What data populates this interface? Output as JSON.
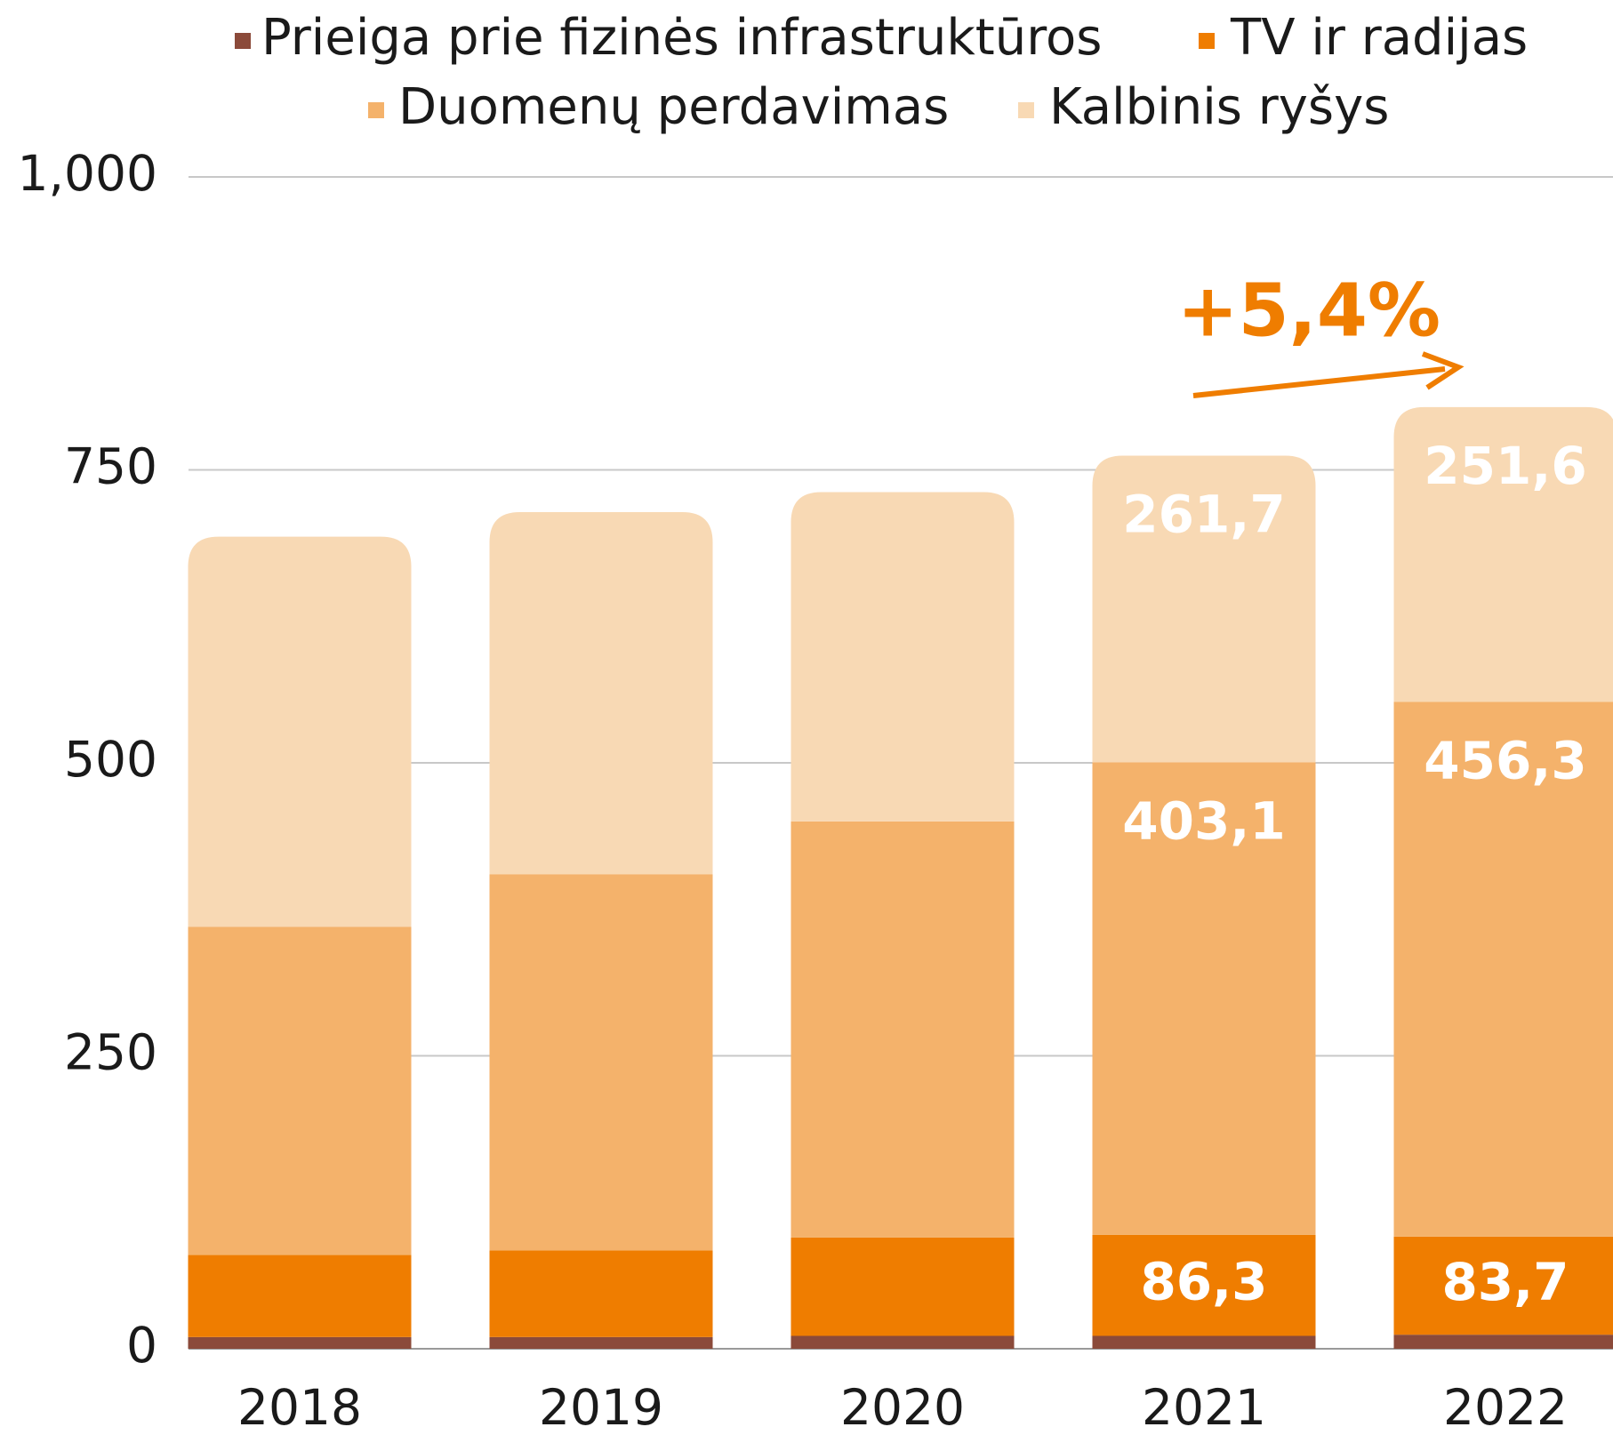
{
  "chart_data": {
    "type": "stacked_bar",
    "categories": [
      "2018",
      "2019",
      "2020",
      "2021",
      "2022"
    ],
    "series": [
      {
        "name": "Prieiga prie fizinės infrastruktūros",
        "color": "#8b4a3a",
        "values": [
          10,
          10,
          11,
          11,
          12
        ]
      },
      {
        "name": "TV ir radijas",
        "color": "#ef7d00",
        "values": [
          70,
          74,
          84,
          86.3,
          83.7
        ],
        "value_labels": [
          null,
          null,
          null,
          "86,3",
          "83,7"
        ]
      },
      {
        "name": "Duomenų perdavimas",
        "color": "#f4b26b",
        "values": [
          280,
          321,
          355,
          403.1,
          456.3
        ],
        "value_labels": [
          null,
          null,
          null,
          "403,1",
          "456,3"
        ]
      },
      {
        "name": "Kalbinis ryšys",
        "color": "#f8d9b4",
        "values": [
          333,
          309,
          281,
          261.7,
          251.6
        ],
        "value_labels": [
          null,
          null,
          null,
          "261,7",
          "251,6"
        ]
      }
    ],
    "ylim": [
      0,
      1000
    ],
    "yticks": [
      0,
      250,
      500,
      750,
      {
        "value": 1000,
        "label": "1,000"
      }
    ],
    "grid": true,
    "annotation": "+5,4%"
  }
}
